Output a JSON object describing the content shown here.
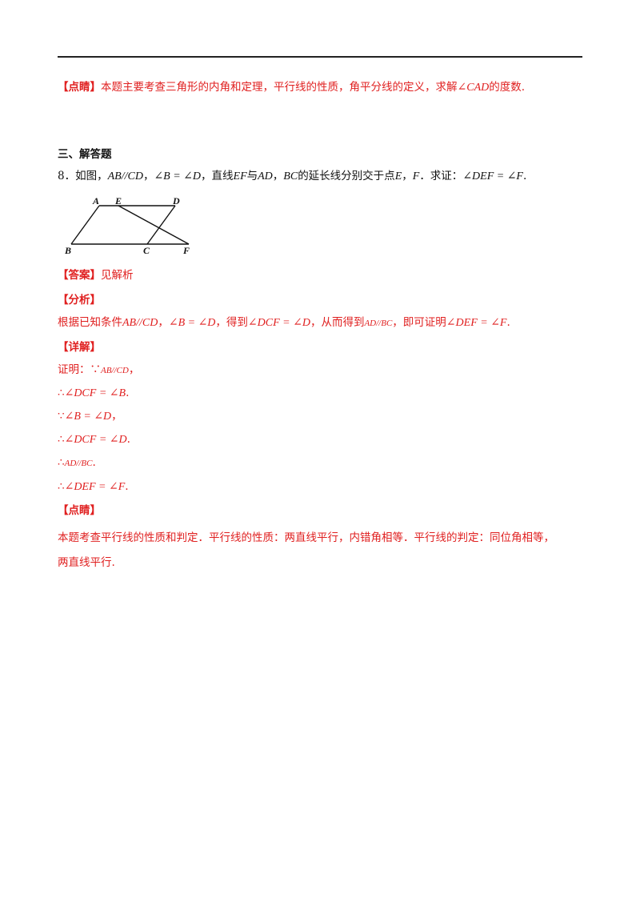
{
  "prev_tip": {
    "bracket": "【点睛】",
    "text": "本题主要考查三角形的内角和定理，平行线的性质，角平分线的定义，求解",
    "math": "∠CAD",
    "tail": "的度数."
  },
  "section_title": "三、解答题",
  "question": {
    "prefix": "8．如图，",
    "m1": "AB//CD",
    "t1": "，",
    "m2": "∠B = ∠D",
    "t2": "，直线",
    "m3": "EF",
    "t3": "与",
    "m4": "AD",
    "t4": "，",
    "m5": "BC",
    "t5": "的延长线分别交于点",
    "m6": "E",
    "t6": "，",
    "m7": "F",
    "t7": "．求证：",
    "m8": "∠DEF = ∠F",
    "t8": "."
  },
  "figure_labels": {
    "A": "A",
    "E": "E",
    "D": "D",
    "B": "B",
    "C": "C",
    "F": "F"
  },
  "answer": {
    "bracket": "【答案】",
    "text": "见解析"
  },
  "analysis": {
    "bracket": "【分析】",
    "t1": "根据已知条件",
    "m1": "AB//CD",
    "t2": "，",
    "m2": "∠B = ∠D",
    "t3": "，得到",
    "m3": "∠DCF = ∠D",
    "t4": "，从而得到",
    "m4": "AD//BC",
    "t5": "，即可证明",
    "m5": "∠DEF = ∠F",
    "t6": "."
  },
  "detail": {
    "bracket": "【详解】",
    "steps": [
      {
        "lead": "证明：∵",
        "math": "AB//CD",
        "tail": "，"
      },
      {
        "lead": "∴",
        "math": "∠DCF = ∠B",
        "tail": "."
      },
      {
        "lead": "∵",
        "math": "∠B = ∠D",
        "tail": "，"
      },
      {
        "lead": "∴",
        "math": "∠DCF = ∠D",
        "tail": "."
      },
      {
        "lead": "∴",
        "math": "AD//BC",
        "tail": "."
      },
      {
        "lead": "∴",
        "math": "∠DEF = ∠F",
        "tail": "."
      }
    ]
  },
  "tip": {
    "bracket": "【点睛】",
    "line1": "本题考查平行线的性质和判定．平行线的性质：两直线平行，内错角相等．平行线的判定：同位角相等，",
    "line2": "两直线平行."
  },
  "colors": {
    "highlight": "#e02020",
    "text": "#111111"
  }
}
